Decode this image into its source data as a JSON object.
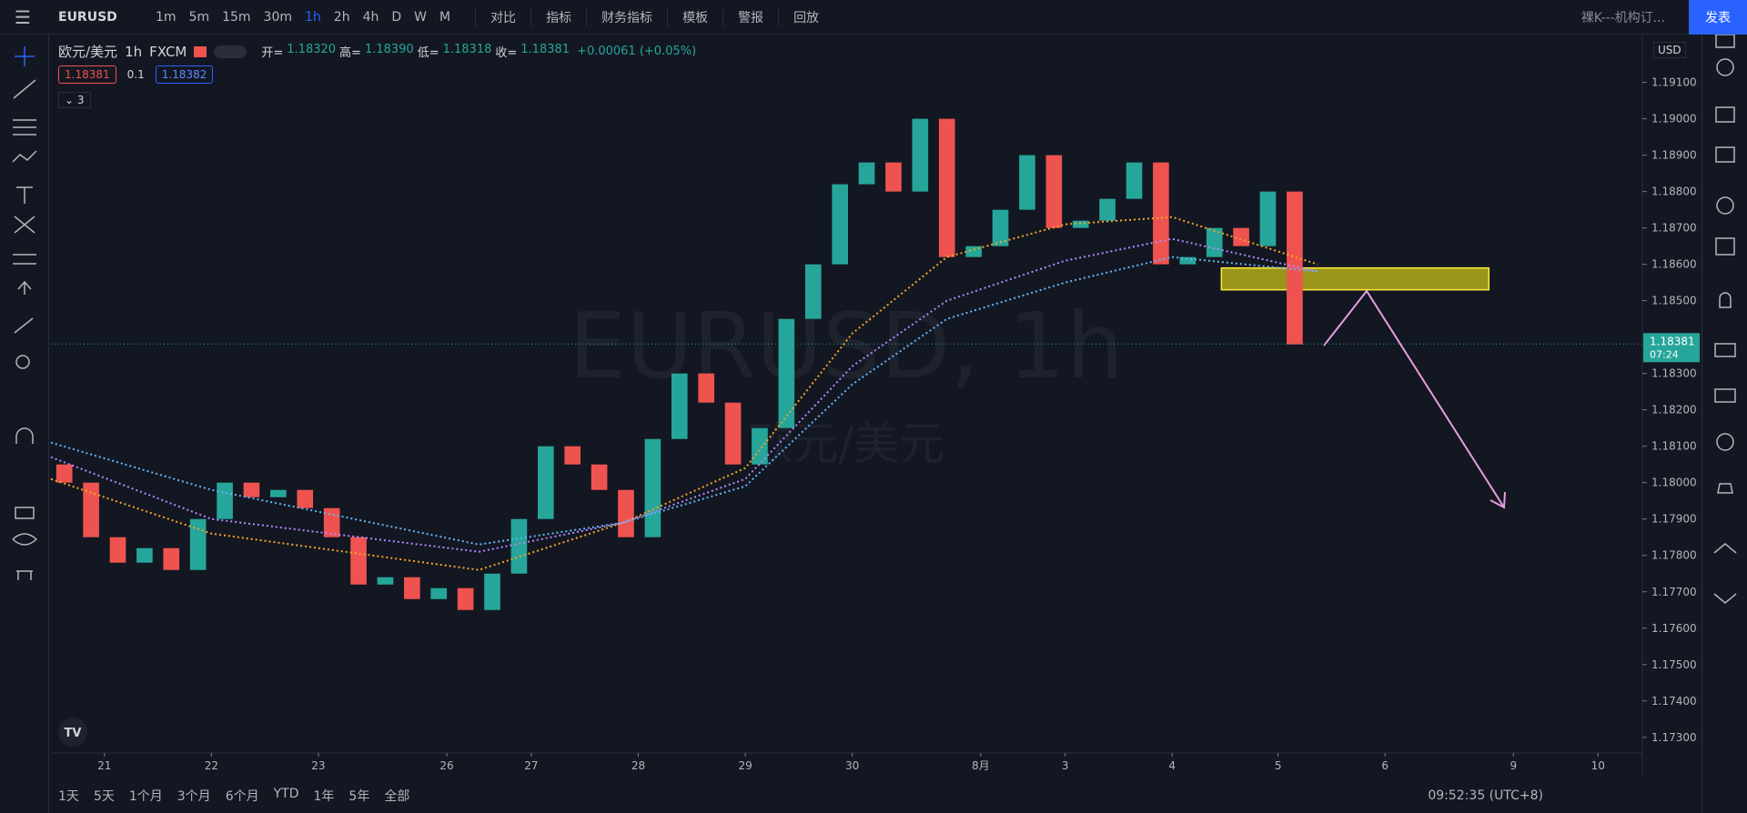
{
  "header": {
    "symbol": "EURUSD",
    "intervals": [
      "1m",
      "5m",
      "15m",
      "30m",
      "1h",
      "2h",
      "4h",
      "D",
      "W",
      "M"
    ],
    "tools": [
      "对比",
      "指标",
      "财务指标",
      "模板",
      "警报",
      "回放"
    ],
    "template": "裸K---机构订...",
    "publish": "发表"
  },
  "legend": {
    "name": "欧元/美元",
    "interval": "1h",
    "source": "FXCM",
    "ohlc": [
      {
        "label": "开=",
        "value": "1.18320"
      },
      {
        "label": "高=",
        "value": "1.18390"
      },
      {
        "label": "低=",
        "value": "1.18318"
      },
      {
        "label": "收=",
        "value": "1.18381"
      }
    ],
    "change": "+0.00061 (+0.05%)",
    "bid": "1.18381",
    "spread": "0.1",
    "ask": "1.18382",
    "indicators": "3"
  },
  "watermark": {
    "main": "EURUSD, 1h",
    "sub": "欧元/美元"
  },
  "chart_data": {
    "type": "candlestick",
    "open": 1.1805,
    "x": [
      -0.375,
      -0.125,
      0.125,
      0.375,
      0.625,
      0.875,
      1.125,
      1.375,
      1.625,
      1.875,
      2.125,
      2.375,
      2.625,
      2.875,
      3.125,
      3.375,
      3.625,
      3.875,
      4.125,
      4.375,
      4.625,
      4.875,
      5.125,
      5.375,
      5.625,
      5.875,
      6.125,
      6.375,
      6.625,
      6.875,
      7.125,
      7.375,
      7.625,
      7.875,
      8.125,
      8.375,
      8.625,
      8.875,
      9.125,
      9.375,
      9.625,
      9.875,
      10.125,
      10.375,
      10.625,
      10.875,
      11.125
    ],
    "close": [
      1.18,
      1.1785,
      1.1778,
      1.1782,
      1.1776,
      1.179,
      1.18,
      1.1796,
      1.1798,
      1.1793,
      1.1785,
      1.1772,
      1.1774,
      1.1768,
      1.1771,
      1.1765,
      1.1775,
      1.179,
      1.181,
      1.1805,
      1.1798,
      1.1785,
      1.1812,
      1.183,
      1.1822,
      1.1805,
      1.1815,
      1.1845,
      1.186,
      1.1882,
      1.1888,
      1.188,
      1.19,
      1.1862,
      1.1865,
      1.1875,
      1.189,
      1.187,
      1.1872,
      1.1878,
      1.1888,
      1.186,
      1.1862,
      1.187,
      1.1865,
      1.188,
      1.1838
    ],
    "up_color": "#26a69a",
    "down_color": "#ef5350",
    "lines": [
      {
        "color": "#f5a623",
        "x": [
          -0.5,
          1,
          3.5,
          4.85,
          5.99,
          6.99,
          7.875,
          8.98,
          9.98,
          11.34
        ],
        "values": [
          1.1801,
          1.1786,
          1.1776,
          1.1789,
          1.1804,
          1.1841,
          1.1862,
          1.1871,
          1.1873,
          1.186
        ]
      },
      {
        "color": "#b388ff",
        "x": [
          -0.5,
          1,
          3.5,
          4.85,
          5.99,
          6.99,
          7.875,
          8.98,
          9.98,
          11.34
        ],
        "values": [
          1.1807,
          1.179,
          1.1781,
          1.1789,
          1.1801,
          1.1832,
          1.185,
          1.1861,
          1.1867,
          1.1858
        ]
      },
      {
        "color": "#64b5f6",
        "x": [
          -0.5,
          1,
          3.5,
          4.85,
          5.99,
          6.99,
          7.875,
          8.98,
          9.98,
          11.34
        ],
        "values": [
          1.1811,
          1.1798,
          1.1783,
          1.1789,
          1.1799,
          1.1827,
          1.1845,
          1.1855,
          1.1862,
          1.1858
        ]
      }
    ],
    "zone": {
      "x": [
        10.44,
        12.94
      ],
      "values": [
        1.1853,
        1.1859
      ],
      "color": "#c8c21a"
    },
    "last_price": {
      "value": 1.18381,
      "label": "1.18381",
      "countdown": "07:24",
      "color": "#26a69a"
    },
    "xlim": [
      -0.5,
      14.375
    ],
    "xticks": [
      {
        "value": 0,
        "label": "21"
      },
      {
        "value": 1,
        "label": "22"
      },
      {
        "value": 2,
        "label": "23"
      },
      {
        "value": 3.2,
        "label": "26"
      },
      {
        "value": 3.99,
        "label": "27"
      },
      {
        "value": 4.99,
        "label": "28"
      },
      {
        "value": 5.99,
        "label": "29"
      },
      {
        "value": 6.99,
        "label": "30"
      },
      {
        "value": 8.19,
        "label": "8月"
      },
      {
        "value": 8.98,
        "label": "3"
      },
      {
        "value": 9.98,
        "label": "4"
      },
      {
        "value": 10.97,
        "label": "5"
      },
      {
        "value": 11.97,
        "label": "6"
      },
      {
        "value": 13.17,
        "label": "9"
      },
      {
        "value": 13.96,
        "label": "10"
      }
    ],
    "ylim": [
      1.17257,
      1.19229
    ],
    "yticks": [
      {
        "value": 1.173,
        "label": "1.17300"
      },
      {
        "value": 1.174,
        "label": "1.17400"
      },
      {
        "value": 1.175,
        "label": "1.17500"
      },
      {
        "value": 1.176,
        "label": "1.17600"
      },
      {
        "value": 1.177,
        "label": "1.17700"
      },
      {
        "value": 1.178,
        "label": "1.17800"
      },
      {
        "value": 1.179,
        "label": "1.17900"
      },
      {
        "value": 1.18,
        "label": "1.18000"
      },
      {
        "value": 1.181,
        "label": "1.18100"
      },
      {
        "value": 1.182,
        "label": "1.18200"
      },
      {
        "value": 1.183,
        "label": "1.18300"
      },
      {
        "value": 1.185,
        "label": "1.18500"
      },
      {
        "value": 1.186,
        "label": "1.18600"
      },
      {
        "value": 1.187,
        "label": "1.18700"
      },
      {
        "value": 1.188,
        "label": "1.18800"
      },
      {
        "value": 1.189,
        "label": "1.18900"
      },
      {
        "value": 1.19,
        "label": "1.19000"
      },
      {
        "value": 1.191,
        "label": "1.19100"
      }
    ],
    "grid": false
  },
  "footer": {
    "ranges": [
      "1天",
      "5天",
      "1个月",
      "3个月",
      "6个月",
      "YTD",
      "1年",
      "5年",
      "全部"
    ],
    "time": "09:52:35 (UTC+8)",
    "currency": "USD"
  }
}
